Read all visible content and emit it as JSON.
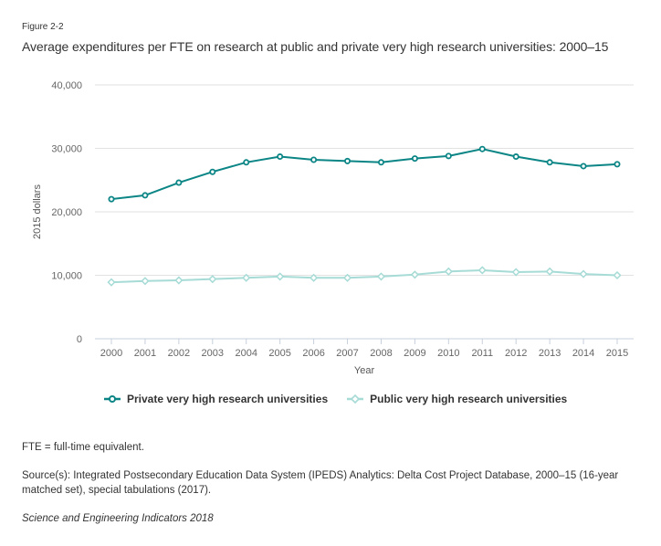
{
  "figure_label": "Figure 2-2",
  "title": "Average expenditures per FTE on research at public and private very high research universities: 2000–15",
  "notes": {
    "abbreviation": "FTE = full-time equivalent.",
    "source": "Source(s): Integrated Postsecondary Education Data System (IPEDS) Analytics: Delta Cost Project Database, 2000–15 (16-year matched set), special tabulations (2017).",
    "publication": "Science and Engineering Indicators 2018"
  },
  "chart_data": {
    "type": "line",
    "title": "Average expenditures per FTE on research at public and private very high research universities: 2000–15",
    "xlabel": "Year",
    "ylabel": "2015 dollars",
    "ylim": [
      0,
      40000
    ],
    "yticks": [
      0,
      10000,
      20000,
      30000,
      40000
    ],
    "ytick_labels": [
      "0",
      "10,000",
      "20,000",
      "30,000",
      "40,000"
    ],
    "grid": true,
    "legend_position": "bottom-left",
    "x": [
      "2000",
      "2001",
      "2002",
      "2003",
      "2004",
      "2005",
      "2006",
      "2007",
      "2008",
      "2009",
      "2010",
      "2011",
      "2012",
      "2013",
      "2014",
      "2015"
    ],
    "series": [
      {
        "name": "Private very high research universities",
        "color": "#0b8585",
        "marker": "circle",
        "values": [
          22000,
          22600,
          24600,
          26300,
          27800,
          28700,
          28200,
          28000,
          27800,
          28400,
          28800,
          29900,
          28700,
          27800,
          27200,
          27500
        ]
      },
      {
        "name": "Public very high research universities",
        "color": "#a6dbd6",
        "marker": "diamond",
        "values": [
          8900,
          9100,
          9200,
          9400,
          9600,
          9800,
          9600,
          9600,
          9800,
          10100,
          10600,
          10800,
          10500,
          10600,
          10200,
          10000
        ]
      }
    ]
  }
}
